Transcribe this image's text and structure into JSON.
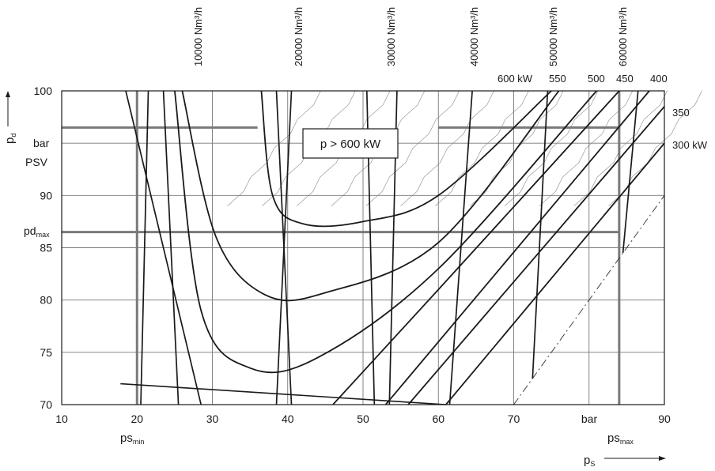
{
  "chart_data": {
    "type": "line",
    "xlim": [
      10,
      90
    ],
    "ylim": [
      70,
      100
    ],
    "x_ticks": [
      10,
      20,
      30,
      40,
      50,
      60,
      70,
      90
    ],
    "x_unit_label": "bar",
    "y_ticks": [
      100,
      90,
      85,
      80,
      75,
      70
    ],
    "y_unit_label": "bar",
    "x_axis_label": {
      "main": "p",
      "sub": "S"
    },
    "y_axis_label": {
      "main": "p",
      "sub": "d"
    },
    "reference_lines": {
      "psv": {
        "label": "PSV",
        "y": 96.5
      },
      "pd_max": {
        "label": "pd",
        "sub": "max",
        "y": 86.5
      },
      "ps_min": {
        "label": "ps",
        "sub": "min",
        "x": 20
      },
      "ps_max": {
        "label": "ps",
        "sub": "max",
        "x": 84
      }
    },
    "flow_lines": [
      {
        "label": "10000 Nm³/h",
        "points": [
          [
            28.5,
            70
          ],
          [
            18.5,
            100
          ]
        ]
      },
      {
        "label": "10000 Nm³/h",
        "points": [
          [
            20.5,
            70
          ],
          [
            21.5,
            100
          ]
        ]
      },
      {
        "label": "10000 Nm³/h",
        "points": [
          [
            25.5,
            70
          ],
          [
            23.5,
            100
          ]
        ]
      },
      {
        "label": "20000 Nm³/h",
        "points": [
          [
            38.5,
            70
          ],
          [
            40.5,
            100
          ]
        ]
      },
      {
        "label": "20000 Nm³/h",
        "points": [
          [
            40.5,
            70
          ],
          [
            38.5,
            100
          ]
        ]
      },
      {
        "label": "30000 Nm³/h",
        "points": [
          [
            51.5,
            70
          ],
          [
            50.5,
            100
          ]
        ]
      },
      {
        "label": "30000 Nm³/h",
        "points": [
          [
            53.5,
            70
          ],
          [
            54.5,
            100
          ]
        ]
      },
      {
        "label": "40000 Nm³/h",
        "points": [
          [
            61.5,
            70
          ],
          [
            64.5,
            100
          ]
        ]
      },
      {
        "label": "50000 Nm³/h",
        "points": [
          [
            72.5,
            72.5
          ],
          [
            74.5,
            100
          ]
        ]
      },
      {
        "label": "60000 Nm³/h",
        "points": [
          [
            84.5,
            84.5
          ],
          [
            86.5,
            100
          ]
        ]
      }
    ],
    "flow_label_texts": [
      "10000 Nm³/h",
      "20000 Nm³/h",
      "30000 Nm³/h",
      "40000 Nm³/h",
      "50000 Nm³/h",
      "60000 Nm³/h"
    ],
    "power_curves": [
      {
        "label": "600 kW",
        "points": [
          [
            36.5,
            100
          ],
          [
            38,
            90
          ],
          [
            42,
            87.3
          ],
          [
            50,
            87.5
          ],
          [
            60,
            90
          ],
          [
            75,
            100
          ]
        ]
      },
      {
        "label": "550",
        "points": [
          [
            26,
            100
          ],
          [
            30.5,
            86
          ],
          [
            37,
            80.5
          ],
          [
            45,
            80.7
          ],
          [
            60,
            85.5
          ],
          [
            76,
            100
          ]
        ]
      },
      {
        "label": "500",
        "points": [
          [
            25,
            100
          ],
          [
            28.5,
            79
          ],
          [
            35,
            73.5
          ],
          [
            44,
            74.5
          ],
          [
            60,
            83
          ],
          [
            81,
            100
          ]
        ]
      },
      {
        "label": "450",
        "points": [
          [
            46,
            70
          ],
          [
            60,
            81
          ],
          [
            84,
            100
          ]
        ]
      },
      {
        "label": "400",
        "points": [
          [
            53,
            70
          ],
          [
            88,
            100
          ]
        ]
      },
      {
        "label": "350",
        "points": [
          [
            56,
            70
          ],
          [
            90,
            98.5
          ]
        ]
      },
      {
        "label": "300 kW",
        "points": [
          [
            61,
            70
          ],
          [
            90,
            95
          ]
        ]
      }
    ],
    "annotation": "p > 600 kW"
  }
}
